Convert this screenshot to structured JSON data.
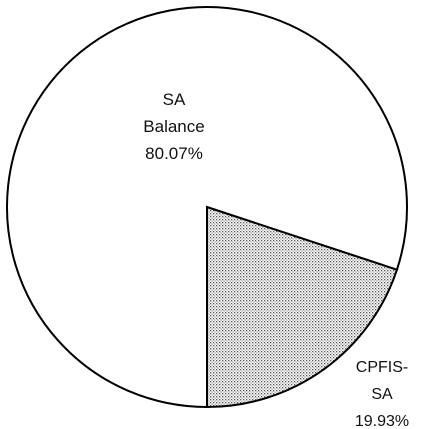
{
  "chart_data": {
    "type": "pie",
    "categories": [
      "CPFIS-SA",
      "SA Balance"
    ],
    "values": [
      19.93,
      80.07
    ],
    "value_labels": [
      "19.93%",
      "80.07%"
    ],
    "fills": [
      "dotted",
      "white"
    ]
  }
}
